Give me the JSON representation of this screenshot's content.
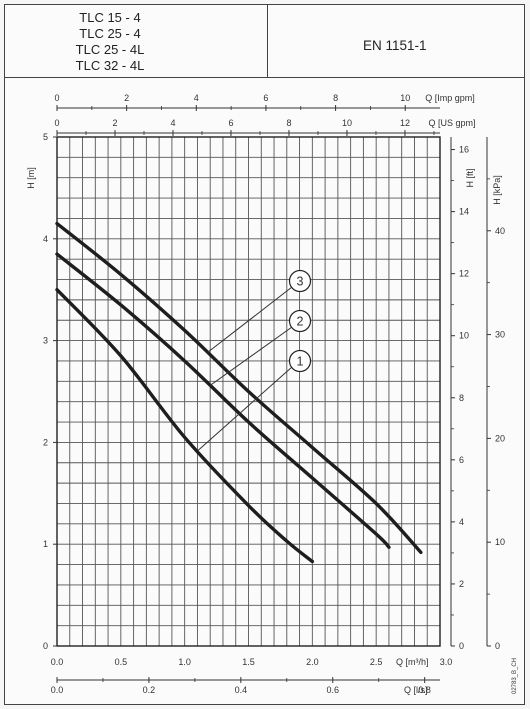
{
  "header": {
    "models": [
      "TLC 15 - 4",
      "TLC 25 - 4",
      "TLC 25 - 4L",
      "TLC 32 - 4L"
    ],
    "standard": "EN 1151-1"
  },
  "chart_data": {
    "type": "line",
    "title": "",
    "x": {
      "label": "Q [m³/h]",
      "range": [
        0,
        3.0
      ],
      "ticks": [
        0.0,
        0.5,
        1.0,
        1.5,
        2.0,
        2.5,
        3.0
      ],
      "tick_labels": [
        "0.0",
        "0.5",
        "1.0",
        "1.5",
        "2.0",
        "2.5",
        "3.0"
      ]
    },
    "x_top_imp": {
      "label": "Q [Imp gpm]",
      "ticks": [
        0,
        2,
        4,
        6,
        8,
        10
      ],
      "tick_labels": [
        "0",
        "2",
        "4",
        "6",
        "8",
        "10"
      ]
    },
    "x_top_us": {
      "label": "Q [US gpm]",
      "ticks": [
        0,
        2,
        4,
        6,
        8,
        10,
        12
      ],
      "tick_labels": [
        "0",
        "2",
        "4",
        "6",
        "8",
        "10",
        "12"
      ]
    },
    "x_bottom_ls": {
      "label": "Q [l/s]",
      "ticks": [
        0.0,
        0.2,
        0.4,
        0.6,
        0.8
      ],
      "tick_labels": [
        "0.0",
        "0.2",
        "0.4",
        "0.6",
        "0.8"
      ]
    },
    "y": {
      "label": "H [m]",
      "range": [
        0,
        5
      ],
      "ticks": [
        0,
        1,
        2,
        3,
        4,
        5
      ],
      "tick_labels": [
        "0",
        "1",
        "2",
        "3",
        "4",
        "5"
      ]
    },
    "y_ft": {
      "label": "H [ft]",
      "ticks": [
        0,
        2,
        4,
        6,
        8,
        10,
        12,
        14,
        16
      ],
      "tick_labels": [
        "0",
        "2",
        "4",
        "6",
        "8",
        "10",
        "12",
        "14",
        "16"
      ]
    },
    "y_kpa": {
      "label": "H [kPa]",
      "ticks": [
        0,
        10,
        20,
        30,
        40
      ],
      "tick_labels": [
        "0",
        "10",
        "20",
        "30",
        "40"
      ]
    },
    "grid": true,
    "series": [
      {
        "name": "1",
        "x": [
          0.0,
          0.5,
          1.0,
          1.5,
          1.8,
          2.0
        ],
        "y": [
          3.5,
          2.85,
          2.05,
          1.38,
          1.03,
          0.83
        ]
      },
      {
        "name": "2",
        "x": [
          0.0,
          0.5,
          1.0,
          1.5,
          2.0,
          2.5,
          2.6
        ],
        "y": [
          3.85,
          3.35,
          2.8,
          2.2,
          1.65,
          1.1,
          0.97
        ]
      },
      {
        "name": "3",
        "x": [
          0.0,
          0.5,
          1.0,
          1.5,
          2.0,
          2.5,
          2.85
        ],
        "y": [
          4.15,
          3.65,
          3.1,
          2.5,
          1.95,
          1.4,
          0.92
        ]
      }
    ],
    "series_labels": [
      "1",
      "2",
      "3"
    ],
    "footnote": "02783_B_CH"
  }
}
